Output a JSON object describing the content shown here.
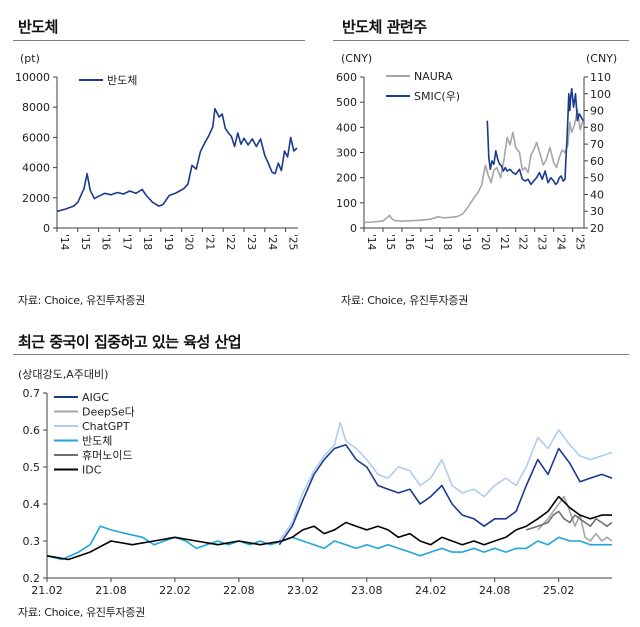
{
  "panels": {
    "top_left": {
      "title": "반도체",
      "source": "자료: Choice, 유진투자증권"
    },
    "top_right": {
      "title": "반도체 관련주",
      "source": "자료: Choice, 유진투자증권"
    },
    "bottom": {
      "title": "최근 중국이 집중하고 있는 육성 산업",
      "source": "자료: Choice, 유진투자증권"
    }
  },
  "colors": {
    "navy": "#1a3a8f",
    "gray": "#a6a6a6",
    "lightblue": "#aecdee",
    "cyan": "#1da6dc",
    "darkgray": "#707070",
    "black": "#000000"
  },
  "chart_data": [
    {
      "type": "line",
      "title": "반도체",
      "ylabel": "(pt)",
      "ylim": [
        0,
        10000
      ],
      "yticks": [
        0,
        2000,
        4000,
        6000,
        8000,
        10000
      ],
      "ytick_labels": [
        "0",
        "2000",
        "4000",
        "6000",
        "8000",
        "10000"
      ],
      "xlim": [
        2014.0,
        2025.6
      ],
      "xticks": [
        2014,
        2015,
        2016,
        2017,
        2018,
        2019,
        2020,
        2021,
        2022,
        2023,
        2024,
        2025
      ],
      "xtick_labels": [
        "'14",
        "'15",
        "'16",
        "'17",
        "'18",
        "'19",
        "'20",
        "'21",
        "'22",
        "'23",
        "'24",
        "'25"
      ],
      "legend": "top-left",
      "series": [
        {
          "name": "반도체",
          "color": "#1a3a8f",
          "axis": "left",
          "x": [
            2014.0,
            2014.4,
            2014.8,
            2015.0,
            2015.3,
            2015.45,
            2015.6,
            2015.8,
            2016.0,
            2016.3,
            2016.6,
            2016.9,
            2017.2,
            2017.5,
            2017.8,
            2018.1,
            2018.3,
            2018.6,
            2018.9,
            2019.1,
            2019.4,
            2019.7,
            2019.9,
            2020.1,
            2020.3,
            2020.5,
            2020.7,
            2020.9,
            2021.1,
            2021.3,
            2021.5,
            2021.6,
            2021.8,
            2021.95,
            2022.1,
            2022.25,
            2022.4,
            2022.55,
            2022.7,
            2022.85,
            2023.0,
            2023.2,
            2023.4,
            2023.6,
            2023.8,
            2024.0,
            2024.2,
            2024.35,
            2024.5,
            2024.65,
            2024.8,
            2024.95,
            2025.1,
            2025.25,
            2025.4,
            2025.55
          ],
          "y": [
            1100,
            1250,
            1450,
            1700,
            2600,
            3600,
            2500,
            1950,
            2100,
            2300,
            2200,
            2350,
            2250,
            2450,
            2300,
            2550,
            2150,
            1700,
            1450,
            1550,
            2150,
            2300,
            2450,
            2600,
            2900,
            4150,
            3900,
            5050,
            5600,
            6100,
            6700,
            7900,
            7350,
            7550,
            6600,
            6300,
            6050,
            5400,
            6300,
            5550,
            5950,
            5500,
            5900,
            5400,
            5900,
            4800,
            4200,
            3700,
            3600,
            4300,
            3800,
            5100,
            4700,
            6000,
            5100,
            5300
          ]
        }
      ]
    },
    {
      "type": "line",
      "title": "반도체 관련주",
      "ylabel": "(CNY)",
      "y2label": "(CNY)",
      "ylim": [
        0,
        600
      ],
      "yticks": [
        0,
        100,
        200,
        300,
        400,
        500,
        600
      ],
      "ytick_labels": [
        "0",
        "100",
        "200",
        "300",
        "400",
        "500",
        "600"
      ],
      "y2lim": [
        20,
        110
      ],
      "y2ticks": [
        20,
        30,
        40,
        50,
        60,
        70,
        80,
        90,
        100,
        110
      ],
      "y2tick_labels": [
        "20",
        "30",
        "40",
        "50",
        "60",
        "70",
        "80",
        "90",
        "100",
        "110"
      ],
      "xlim": [
        2014.0,
        2025.6
      ],
      "xticks": [
        2014,
        2015,
        2016,
        2017,
        2018,
        2019,
        2020,
        2021,
        2022,
        2023,
        2024,
        2025
      ],
      "xtick_labels": [
        "'14",
        "'15",
        "'16",
        "'17",
        "'18",
        "'19",
        "'20",
        "'21",
        "'22",
        "'23",
        "'24",
        "'25"
      ],
      "legend": "top-left",
      "series": [
        {
          "name": "NAURA",
          "color": "#a6a6a6",
          "axis": "left",
          "x": [
            2014.0,
            2014.5,
            2015.0,
            2015.35,
            2015.45,
            2015.6,
            2016.0,
            2016.5,
            2017.0,
            2017.5,
            2017.9,
            2018.2,
            2018.5,
            2018.9,
            2019.2,
            2019.5,
            2019.8,
            2020.0,
            2020.2,
            2020.4,
            2020.55,
            2020.7,
            2020.85,
            2021.0,
            2021.2,
            2021.4,
            2021.55,
            2021.7,
            2021.85,
            2022.0,
            2022.2,
            2022.35,
            2022.5,
            2022.65,
            2022.8,
            2022.95,
            2023.1,
            2023.3,
            2023.45,
            2023.6,
            2023.8,
            2024.0,
            2024.15,
            2024.3,
            2024.45,
            2024.6,
            2024.75,
            2024.85,
            2024.95,
            2025.1,
            2025.25,
            2025.4,
            2025.55
          ],
          "y": [
            22,
            24,
            28,
            50,
            38,
            30,
            27,
            29,
            31,
            35,
            45,
            40,
            42,
            45,
            55,
            85,
            120,
            140,
            170,
            250,
            210,
            180,
            230,
            240,
            200,
            280,
            360,
            330,
            380,
            320,
            300,
            230,
            240,
            220,
            290,
            310,
            340,
            290,
            250,
            270,
            320,
            260,
            240,
            280,
            310,
            300,
            330,
            420,
            380,
            410,
            470,
            390,
            430
          ]
        },
        {
          "name": "SMIC(우)",
          "color": "#1a3a8f",
          "axis": "right",
          "x": [
            2020.5,
            2020.58,
            2020.66,
            2020.75,
            2020.85,
            2020.95,
            2021.05,
            2021.15,
            2021.25,
            2021.35,
            2021.45,
            2021.55,
            2021.7,
            2021.85,
            2022.0,
            2022.2,
            2022.35,
            2022.5,
            2022.65,
            2022.8,
            2022.95,
            2023.1,
            2023.25,
            2023.4,
            2023.55,
            2023.7,
            2023.85,
            2024.0,
            2024.1,
            2024.2,
            2024.3,
            2024.4,
            2024.5,
            2024.6,
            2024.65,
            2024.7,
            2024.75,
            2024.8,
            2024.85,
            2024.9,
            2024.95,
            2025.05,
            2025.15,
            2025.25,
            2025.35,
            2025.45,
            2025.55
          ],
          "y": [
            84,
            62,
            55,
            60,
            58,
            66,
            61,
            58,
            57,
            54,
            56,
            54,
            55,
            53,
            52,
            55,
            49,
            48,
            49,
            46,
            48,
            50,
            53,
            49,
            54,
            47,
            50,
            48,
            46,
            47,
            50,
            51,
            48,
            49,
            62,
            72,
            86,
            100,
            90,
            98,
            103,
            92,
            100,
            84,
            88,
            86,
            84
          ]
        }
      ]
    },
    {
      "type": "line",
      "title": "최근 중국이 집중하고 있는 육성 산업",
      "ylabel": "(상대강도,A주대비)",
      "ylim": [
        0.2,
        0.7
      ],
      "yticks": [
        0.2,
        0.3,
        0.4,
        0.5,
        0.6,
        0.7
      ],
      "ytick_labels": [
        "0.2",
        "0.3",
        "0.4",
        "0.5",
        "0.6",
        "0.7"
      ],
      "xlim": [
        2021.083,
        2025.5
      ],
      "xticks": [
        2021.083,
        2021.583,
        2022.083,
        2022.583,
        2023.083,
        2023.583,
        2024.083,
        2024.583,
        2025.083
      ],
      "xtick_labels": [
        "21.02",
        "21.08",
        "22.02",
        "22.08",
        "23.02",
        "23.08",
        "24.02",
        "24.08",
        "25.02"
      ],
      "legend": "top-left",
      "series": [
        {
          "name": "AIGC",
          "color": "#1a3a8f",
          "x": [
            2022.9,
            2023.0,
            2023.083,
            2023.17,
            2023.25,
            2023.33,
            2023.42,
            2023.5,
            2023.583,
            2023.67,
            2023.75,
            2023.83,
            2023.92,
            2024.0,
            2024.083,
            2024.17,
            2024.25,
            2024.33,
            2024.42,
            2024.5,
            2024.583,
            2024.67,
            2024.75,
            2024.83,
            2024.92,
            2025.0,
            2025.083,
            2025.17,
            2025.25,
            2025.33,
            2025.42,
            2025.5
          ],
          "y": [
            0.29,
            0.34,
            0.41,
            0.48,
            0.52,
            0.55,
            0.56,
            0.52,
            0.5,
            0.45,
            0.44,
            0.43,
            0.44,
            0.4,
            0.42,
            0.45,
            0.4,
            0.37,
            0.36,
            0.34,
            0.36,
            0.36,
            0.38,
            0.45,
            0.52,
            0.48,
            0.55,
            0.51,
            0.46,
            0.47,
            0.48,
            0.47
          ]
        },
        {
          "name": "DeepSe다",
          "color": "#a6a6a6",
          "x": [
            2024.92,
            2025.0,
            2025.04,
            2025.083,
            2025.125,
            2025.17,
            2025.21,
            2025.25,
            2025.29,
            2025.33,
            2025.375,
            2025.42,
            2025.46,
            2025.5
          ],
          "y": [
            0.33,
            0.36,
            0.38,
            0.4,
            0.42,
            0.38,
            0.34,
            0.37,
            0.31,
            0.3,
            0.32,
            0.3,
            0.31,
            0.3
          ]
        },
        {
          "name": "ChatGPT",
          "color": "#aecdee",
          "x": [
            2022.9,
            2023.0,
            2023.083,
            2023.17,
            2023.25,
            2023.33,
            2023.375,
            2023.42,
            2023.5,
            2023.583,
            2023.67,
            2023.75,
            2023.83,
            2023.92,
            2024.0,
            2024.083,
            2024.17,
            2024.25,
            2024.33,
            2024.42,
            2024.5,
            2024.583,
            2024.67,
            2024.75,
            2024.83,
            2024.92,
            2025.0,
            2025.083,
            2025.17,
            2025.25,
            2025.33,
            2025.42,
            2025.5
          ],
          "y": [
            0.3,
            0.35,
            0.43,
            0.49,
            0.53,
            0.56,
            0.62,
            0.57,
            0.55,
            0.52,
            0.48,
            0.47,
            0.5,
            0.49,
            0.45,
            0.47,
            0.52,
            0.45,
            0.43,
            0.44,
            0.42,
            0.45,
            0.47,
            0.45,
            0.5,
            0.58,
            0.55,
            0.6,
            0.56,
            0.53,
            0.52,
            0.53,
            0.54
          ]
        },
        {
          "name": "반도체",
          "color": "#1da6dc",
          "x": [
            2021.083,
            2021.2,
            2021.33,
            2021.42,
            2021.5,
            2021.583,
            2021.7,
            2021.83,
            2021.92,
            2022.0,
            2022.083,
            2022.17,
            2022.25,
            2022.33,
            2022.42,
            2022.5,
            2022.583,
            2022.67,
            2022.75,
            2022.83,
            2022.92,
            2023.0,
            2023.083,
            2023.17,
            2023.25,
            2023.33,
            2023.42,
            2023.5,
            2023.583,
            2023.67,
            2023.75,
            2023.83,
            2023.92,
            2024.0,
            2024.083,
            2024.17,
            2024.25,
            2024.33,
            2024.42,
            2024.5,
            2024.583,
            2024.67,
            2024.75,
            2024.83,
            2024.92,
            2025.0,
            2025.083,
            2025.17,
            2025.25,
            2025.33,
            2025.42,
            2025.5
          ],
          "y": [
            0.26,
            0.25,
            0.27,
            0.29,
            0.34,
            0.33,
            0.32,
            0.31,
            0.29,
            0.3,
            0.31,
            0.3,
            0.28,
            0.29,
            0.3,
            0.29,
            0.3,
            0.29,
            0.3,
            0.29,
            0.3,
            0.31,
            0.3,
            0.29,
            0.28,
            0.3,
            0.29,
            0.28,
            0.29,
            0.28,
            0.29,
            0.28,
            0.27,
            0.26,
            0.27,
            0.28,
            0.27,
            0.27,
            0.28,
            0.27,
            0.28,
            0.27,
            0.28,
            0.28,
            0.3,
            0.29,
            0.31,
            0.3,
            0.3,
            0.29,
            0.29,
            0.29
          ]
        },
        {
          "name": "휴머노이드",
          "color": "#707070",
          "x": [
            2024.83,
            2024.92,
            2025.0,
            2025.04,
            2025.083,
            2025.125,
            2025.17,
            2025.21,
            2025.25,
            2025.29,
            2025.33,
            2025.375,
            2025.42,
            2025.46,
            2025.5
          ],
          "y": [
            0.33,
            0.34,
            0.35,
            0.37,
            0.38,
            0.36,
            0.35,
            0.37,
            0.36,
            0.35,
            0.34,
            0.36,
            0.35,
            0.34,
            0.35
          ]
        },
        {
          "name": "IDC",
          "color": "#000000",
          "x": [
            2021.083,
            2021.25,
            2021.42,
            2021.583,
            2021.75,
            2021.92,
            2022.083,
            2022.25,
            2022.42,
            2022.583,
            2022.75,
            2022.92,
            2023.0,
            2023.083,
            2023.17,
            2023.25,
            2023.33,
            2023.42,
            2023.5,
            2023.583,
            2023.67,
            2023.75,
            2023.83,
            2023.92,
            2024.0,
            2024.083,
            2024.17,
            2024.25,
            2024.33,
            2024.42,
            2024.5,
            2024.583,
            2024.67,
            2024.75,
            2024.83,
            2024.92,
            2025.0,
            2025.083,
            2025.17,
            2025.25,
            2025.33,
            2025.42,
            2025.5
          ],
          "y": [
            0.26,
            0.25,
            0.27,
            0.3,
            0.29,
            0.3,
            0.31,
            0.3,
            0.29,
            0.3,
            0.29,
            0.3,
            0.31,
            0.33,
            0.34,
            0.32,
            0.33,
            0.35,
            0.34,
            0.33,
            0.34,
            0.33,
            0.31,
            0.32,
            0.3,
            0.29,
            0.31,
            0.3,
            0.29,
            0.3,
            0.29,
            0.3,
            0.31,
            0.33,
            0.34,
            0.36,
            0.38,
            0.42,
            0.39,
            0.37,
            0.36,
            0.37,
            0.37
          ]
        }
      ]
    }
  ]
}
